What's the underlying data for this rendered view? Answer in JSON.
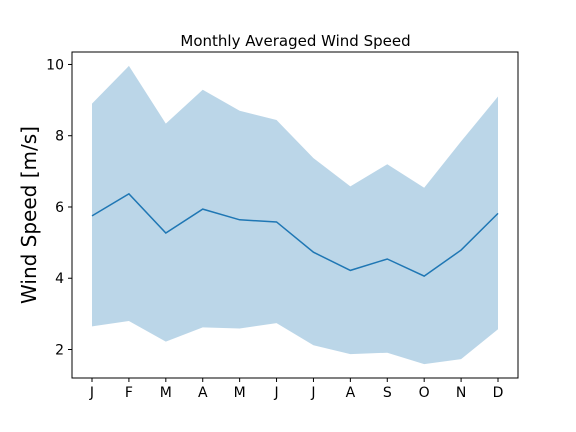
{
  "chart_data": {
    "type": "area",
    "title": "Monthly Averaged Wind Speed",
    "xlabel": "",
    "ylabel": "Wind Speed [m/s]",
    "categories": [
      "J",
      "F",
      "M",
      "A",
      "M",
      "J",
      "J",
      "A",
      "S",
      "O",
      "N",
      "D"
    ],
    "ylim": [
      1.2,
      10.35
    ],
    "yticks": [
      2,
      4,
      6,
      8,
      10
    ],
    "grid": false,
    "mean": [
      5.75,
      6.37,
      5.27,
      5.94,
      5.64,
      5.58,
      4.73,
      4.22,
      4.54,
      4.06,
      4.79,
      5.82
    ],
    "upper": [
      8.9,
      9.96,
      8.34,
      9.29,
      8.7,
      8.44,
      7.37,
      6.58,
      7.2,
      6.54,
      7.84,
      9.1
    ],
    "lower": [
      2.65,
      2.8,
      2.22,
      2.62,
      2.59,
      2.74,
      2.12,
      1.87,
      1.91,
      1.59,
      1.73,
      2.57
    ],
    "colors": {
      "line": "#1f77b4",
      "band": "#1f77b4",
      "band_opacity": 0.3
    }
  }
}
